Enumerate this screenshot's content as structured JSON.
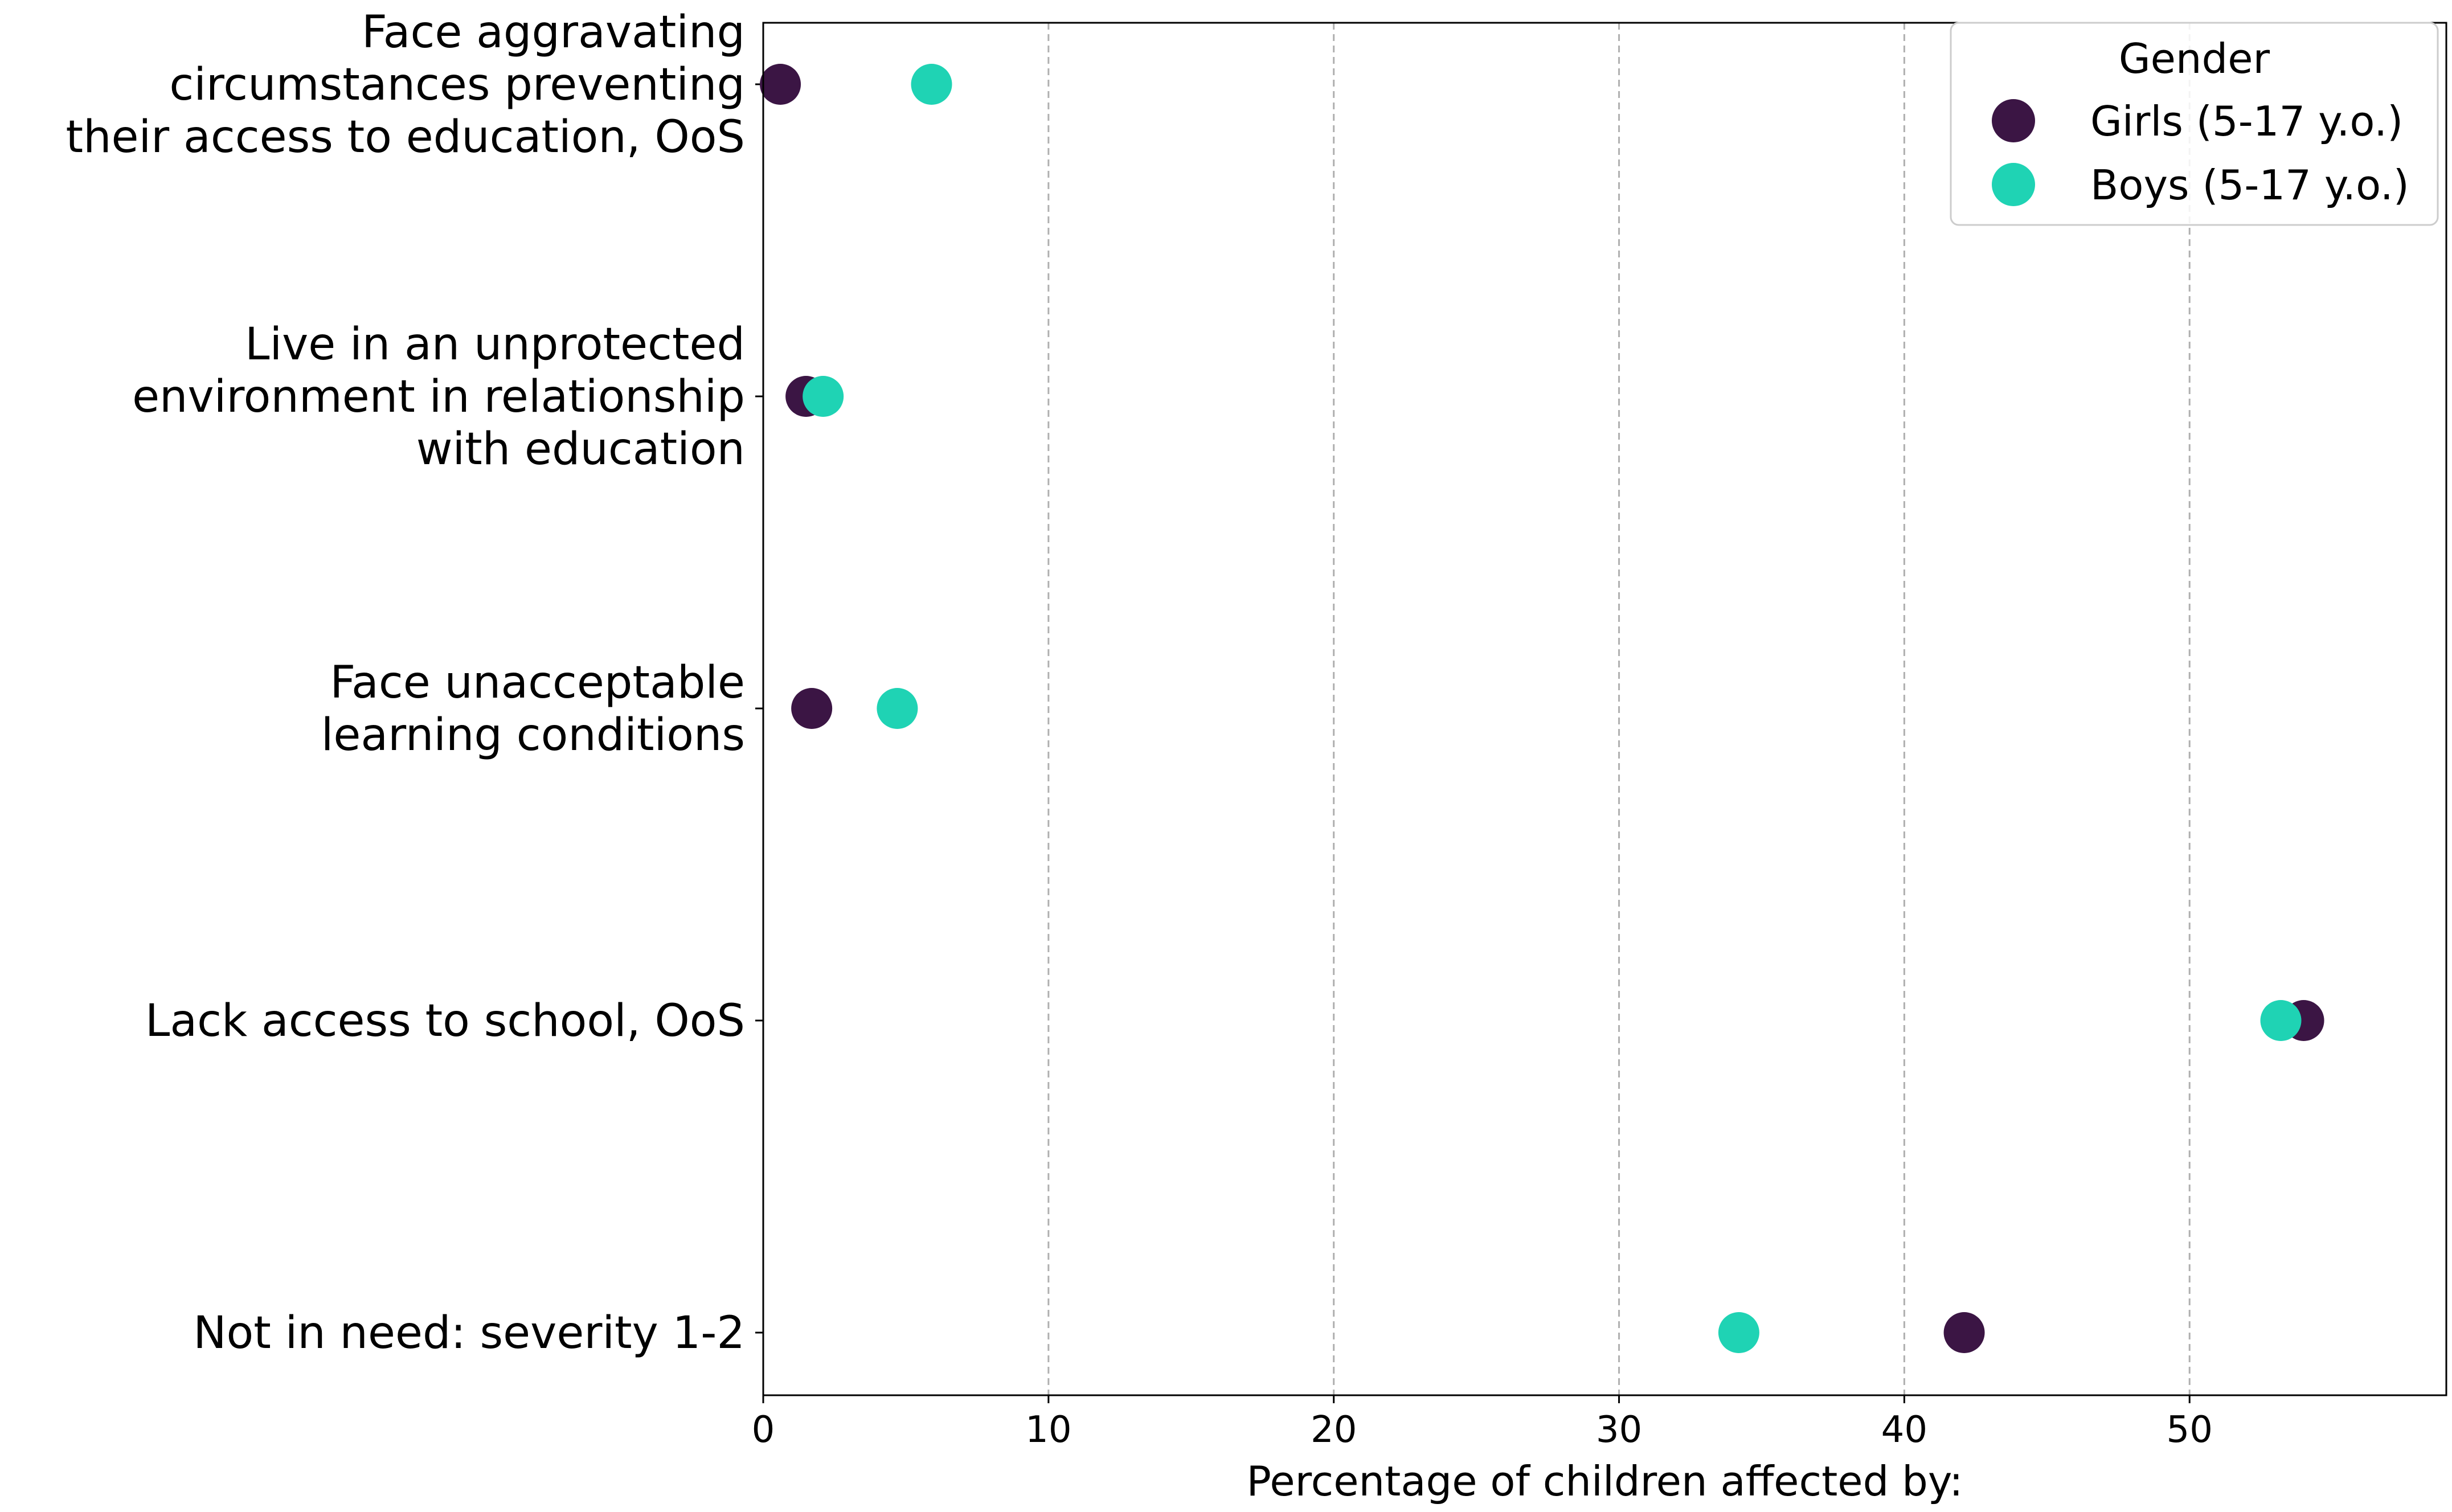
{
  "chart_data": {
    "type": "scatter",
    "orientation": "horizontal",
    "xlabel": "Percentage of children affected by:",
    "ylabel": "",
    "xlim": [
      0,
      59
    ],
    "xticks": [
      0,
      10,
      20,
      30,
      40,
      50
    ],
    "grid": "x-dashed",
    "categories": [
      [
        "Face aggravating",
        "circumstances preventing",
        "their access to education, OoS"
      ],
      [
        "Live in an unprotected",
        "environment in relationship",
        "with education"
      ],
      [
        "Face unacceptable",
        "learning conditions"
      ],
      [
        "Lack access to school, OoS"
      ],
      [
        "Not in need: severity 1-2"
      ]
    ],
    "series": [
      {
        "name": "Girls (5-17 y.o.)",
        "color": "#3b1544",
        "values": [
          0.6,
          1.5,
          1.7,
          54.0,
          42.1
        ]
      },
      {
        "name": "Boys (5-17 y.o.)",
        "color": "#1fd3b4",
        "values": [
          5.9,
          2.1,
          4.7,
          53.2,
          34.2
        ]
      }
    ],
    "legend": {
      "title": "Gender",
      "position": "top-right"
    }
  }
}
